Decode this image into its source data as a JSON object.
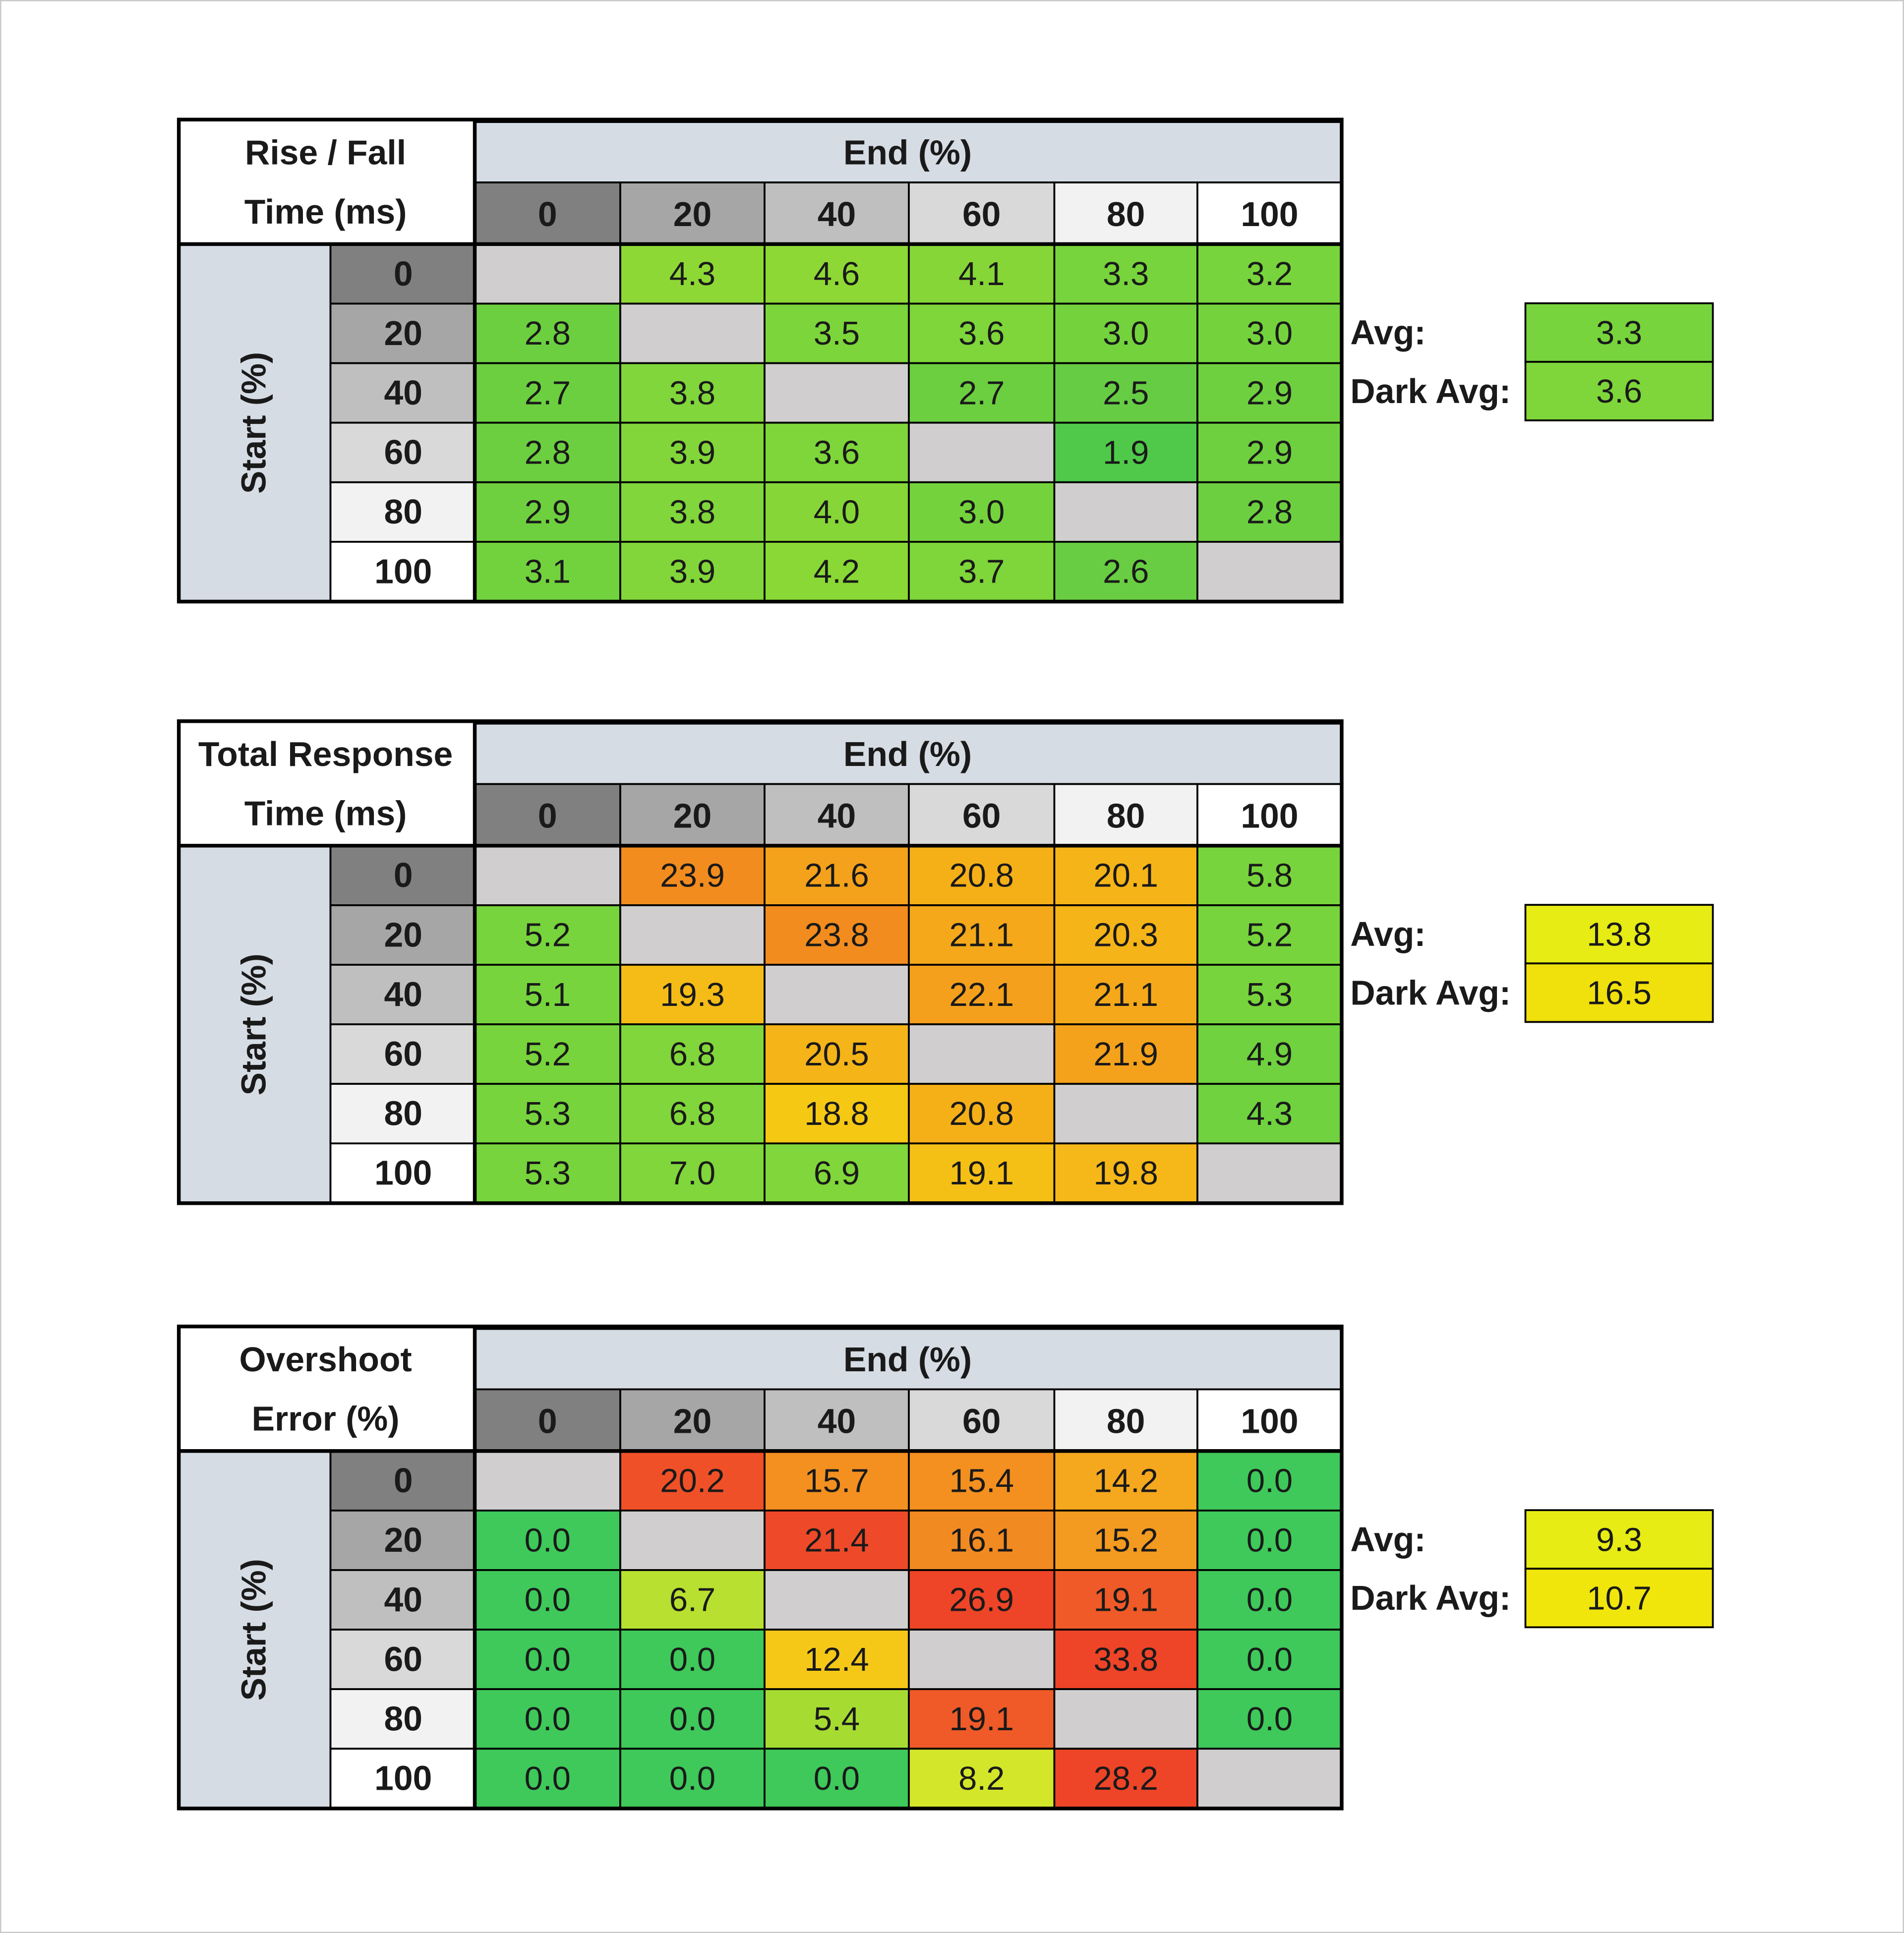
{
  "tables": [
    {
      "title_lines": [
        "Rise / Fall",
        "Time (ms)"
      ],
      "end_label": "End (%)",
      "start_label": "Start (%)",
      "columns": [
        "0",
        "20",
        "40",
        "60",
        "80",
        "100"
      ],
      "rows": [
        "0",
        "20",
        "40",
        "60",
        "80",
        "100"
      ],
      "cells": [
        [
          null,
          "4.3",
          "4.6",
          "4.1",
          "3.3",
          "3.2"
        ],
        [
          "2.8",
          null,
          "3.5",
          "3.6",
          "3.0",
          "3.0"
        ],
        [
          "2.7",
          "3.8",
          null,
          "2.7",
          "2.5",
          "2.9"
        ],
        [
          "2.8",
          "3.9",
          "3.6",
          null,
          "1.9",
          "2.9"
        ],
        [
          "2.9",
          "3.8",
          "4.0",
          "3.0",
          null,
          "2.8"
        ],
        [
          "3.1",
          "3.9",
          "4.2",
          "3.7",
          "2.6",
          null
        ]
      ],
      "colors": [
        [
          "#d0cece",
          "#8ed835",
          "#8ed835",
          "#86d637",
          "#77d43c",
          "#77d43c"
        ],
        [
          "#6ccf40",
          "#d0cece",
          "#7cd53a",
          "#7ed63a",
          "#74d33d",
          "#74d33d"
        ],
        [
          "#6ccf40",
          "#80d63a",
          "#d0cece",
          "#6ccf40",
          "#66cc44",
          "#6fd03f"
        ],
        [
          "#6ccf40",
          "#82d639",
          "#7ed63a",
          "#d0cece",
          "#50c94a",
          "#6fd03f"
        ],
        [
          "#6fd03f",
          "#80d63a",
          "#86d637",
          "#74d33d",
          "#d0cece",
          "#6ccf40"
        ],
        [
          "#72d23e",
          "#82d639",
          "#8ad836",
          "#7ed63a",
          "#68cd42",
          "#d0cece"
        ]
      ],
      "avg_label": "Avg:",
      "avg": "3.3",
      "avg_color": "#77d43c",
      "dark_avg_label": "Dark Avg:",
      "dark_avg": "3.6",
      "dark_avg_color": "#7ed63a"
    },
    {
      "title_lines": [
        "Total Response",
        "Time (ms)"
      ],
      "end_label": "End (%)",
      "start_label": "Start (%)",
      "columns": [
        "0",
        "20",
        "40",
        "60",
        "80",
        "100"
      ],
      "rows": [
        "0",
        "20",
        "40",
        "60",
        "80",
        "100"
      ],
      "cells": [
        [
          null,
          "23.9",
          "21.6",
          "20.8",
          "20.1",
          "5.8"
        ],
        [
          "5.2",
          null,
          "23.8",
          "21.1",
          "20.3",
          "5.2"
        ],
        [
          "5.1",
          "19.3",
          null,
          "22.1",
          "21.1",
          "5.3"
        ],
        [
          "5.2",
          "6.8",
          "20.5",
          null,
          "21.9",
          "4.9"
        ],
        [
          "5.3",
          "6.8",
          "18.8",
          "20.8",
          null,
          "4.3"
        ],
        [
          "5.3",
          "7.0",
          "6.9",
          "19.1",
          "19.8",
          null
        ]
      ],
      "colors": [
        [
          "#d0cece",
          "#f28c1e",
          "#f4a21c",
          "#f5b018",
          "#f5b418",
          "#77d43c"
        ],
        [
          "#77d43c",
          "#d0cece",
          "#f28c1e",
          "#f4a81a",
          "#f5b418",
          "#77d43c"
        ],
        [
          "#77d43c",
          "#f5bc18",
          "#d0cece",
          "#f4a01c",
          "#f4a81a",
          "#77d43c"
        ],
        [
          "#77d43c",
          "#80d63a",
          "#f5b418",
          "#d0cece",
          "#f4a21c",
          "#6fd23e"
        ],
        [
          "#77d43c",
          "#80d63a",
          "#f5c814",
          "#f5b018",
          "#d0cece",
          "#6fd23e"
        ],
        [
          "#77d43c",
          "#80d63a",
          "#80d63a",
          "#f5c016",
          "#f5b818",
          "#d0cece"
        ]
      ],
      "avg_label": "Avg:",
      "avg": "13.8",
      "avg_color": "#e6ec14",
      "dark_avg_label": "Dark Avg:",
      "dark_avg": "16.5",
      "dark_avg_color": "#f0e00c"
    },
    {
      "title_lines": [
        "Overshoot",
        "Error (%)"
      ],
      "end_label": "End (%)",
      "start_label": "Start (%)",
      "columns": [
        "0",
        "20",
        "40",
        "60",
        "80",
        "100"
      ],
      "rows": [
        "0",
        "20",
        "40",
        "60",
        "80",
        "100"
      ],
      "cells": [
        [
          null,
          "20.2",
          "15.7",
          "15.4",
          "14.2",
          "0.0"
        ],
        [
          "0.0",
          null,
          "21.4",
          "16.1",
          "15.2",
          "0.0"
        ],
        [
          "0.0",
          "6.7",
          null,
          "26.9",
          "19.1",
          "0.0"
        ],
        [
          "0.0",
          "0.0",
          "12.4",
          null,
          "33.8",
          "0.0"
        ],
        [
          "0.0",
          "0.0",
          "5.4",
          "19.1",
          null,
          "0.0"
        ],
        [
          "0.0",
          "0.0",
          "0.0",
          "8.2",
          "28.2",
          null
        ]
      ],
      "colors": [
        [
          "#d0cece",
          "#f05028",
          "#f39020",
          "#f39020",
          "#f5a81e",
          "#3ec95a"
        ],
        [
          "#3ec95a",
          "#d0cece",
          "#ee4a2a",
          "#f28a22",
          "#f39a20",
          "#3ec95a"
        ],
        [
          "#3ec95a",
          "#b8e030",
          "#d0cece",
          "#ee4428",
          "#ef5a28",
          "#3ec95a"
        ],
        [
          "#3ec95a",
          "#3ec95a",
          "#f5c818",
          "#d0cece",
          "#ee4428",
          "#3ec95a"
        ],
        [
          "#3ec95a",
          "#3ec95a",
          "#a6dc32",
          "#ef5a28",
          "#d0cece",
          "#3ec95a"
        ],
        [
          "#3ec95a",
          "#3ec95a",
          "#3ec95a",
          "#d4e62a",
          "#ee4428",
          "#d0cece"
        ]
      ],
      "avg_label": "Avg:",
      "avg": "9.3",
      "avg_color": "#e6ec14",
      "dark_avg_label": "Dark Avg:",
      "dark_avg": "10.7",
      "dark_avg_color": "#f0e60c"
    }
  ]
}
